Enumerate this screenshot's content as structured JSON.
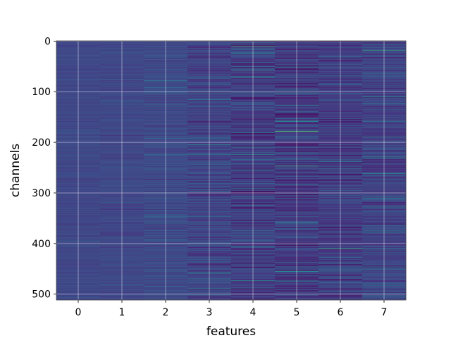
{
  "chart_data": {
    "type": "heatmap",
    "title": "",
    "xlabel": "features",
    "ylabel": "channels",
    "x_ticks": [
      "0",
      "1",
      "2",
      "3",
      "4",
      "5",
      "6",
      "7"
    ],
    "y_ticks": [
      "0",
      "100",
      "200",
      "300",
      "400",
      "500"
    ],
    "x_categories": [
      0,
      1,
      2,
      3,
      4,
      5,
      6,
      7
    ],
    "y_range": [
      0,
      511
    ],
    "n_channels": 512,
    "grid": true,
    "colormap": "viridis",
    "column_spread": [
      0.05,
      0.06,
      0.09,
      0.15,
      0.18,
      0.2,
      0.16,
      0.16
    ],
    "column_baseline": [
      0.24,
      0.24,
      0.25,
      0.23,
      0.2,
      0.19,
      0.2,
      0.22
    ],
    "highlights": [
      {
        "feature": 4,
        "channel": 10,
        "level": 0.78
      },
      {
        "feature": 5,
        "channel": 178,
        "level": 0.85
      },
      {
        "feature": 5,
        "channel": 247,
        "level": 0.72
      },
      {
        "feature": 5,
        "channel": 455,
        "level": 0.6
      },
      {
        "feature": 6,
        "channel": 409,
        "level": 0.75
      },
      {
        "feature": 7,
        "channel": 18,
        "level": 0.7
      },
      {
        "feature": 7,
        "channel": 262,
        "level": 0.55
      },
      {
        "feature": 3,
        "channel": 205,
        "level": 0.55
      },
      {
        "feature": 4,
        "channel": 292,
        "level": 0.55
      }
    ]
  }
}
